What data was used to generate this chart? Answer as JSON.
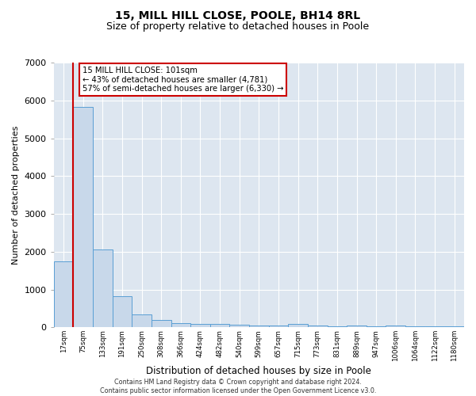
{
  "title": "15, MILL HILL CLOSE, POOLE, BH14 8RL",
  "subtitle": "Size of property relative to detached houses in Poole",
  "xlabel": "Distribution of detached houses by size in Poole",
  "ylabel": "Number of detached properties",
  "footer": "Contains HM Land Registry data © Crown copyright and database right 2024.\nContains public sector information licensed under the Open Government Licence v3.0.",
  "bin_labels": [
    "17sqm",
    "75sqm",
    "133sqm",
    "191sqm",
    "250sqm",
    "308sqm",
    "366sqm",
    "424sqm",
    "482sqm",
    "540sqm",
    "599sqm",
    "657sqm",
    "715sqm",
    "773sqm",
    "831sqm",
    "889sqm",
    "947sqm",
    "1006sqm",
    "1064sqm",
    "1122sqm",
    "1180sqm"
  ],
  "bar_heights": [
    1750,
    5820,
    2050,
    830,
    340,
    190,
    115,
    100,
    80,
    60,
    55,
    50,
    100,
    40,
    35,
    40,
    35,
    55,
    30,
    25,
    25
  ],
  "bar_color": "#c8d8ea",
  "bar_edge_color": "#5a9fd4",
  "red_line_index": 1,
  "red_line_color": "#cc0000",
  "annotation_text": "15 MILL HILL CLOSE: 101sqm\n← 43% of detached houses are smaller (4,781)\n57% of semi-detached houses are larger (6,330) →",
  "annotation_box_edgecolor": "#cc0000",
  "ylim": [
    0,
    7000
  ],
  "background_color": "#dde6f0",
  "grid_color": "#ffffff",
  "fig_background": "#ffffff",
  "title_fontsize": 10,
  "subtitle_fontsize": 9
}
